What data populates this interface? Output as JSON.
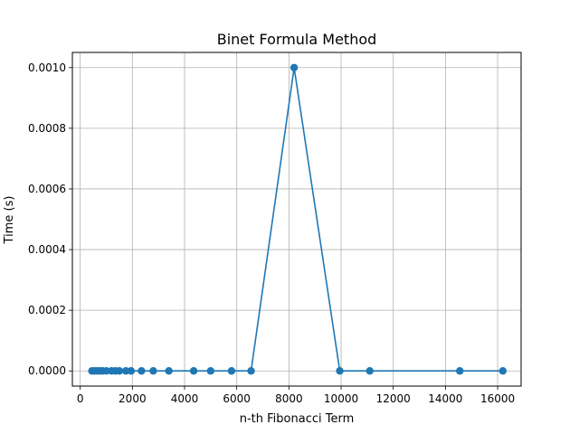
{
  "chart_data": {
    "type": "line",
    "title": "Binet Formula Method",
    "xlabel": "n-th Fibonacci Term",
    "ylabel": "Time (s)",
    "xlim": [
      -300,
      16900
    ],
    "ylim": [
      -5e-05,
      0.00105
    ],
    "grid": true,
    "marker": "circle",
    "color": "#1f77b4",
    "x_ticks": [
      {
        "value": 0,
        "label": "0"
      },
      {
        "value": 2000,
        "label": "2000"
      },
      {
        "value": 4000,
        "label": "4000"
      },
      {
        "value": 6000,
        "label": "6000"
      },
      {
        "value": 8000,
        "label": "8000"
      },
      {
        "value": 10000,
        "label": "10000"
      },
      {
        "value": 12000,
        "label": "12000"
      },
      {
        "value": 14000,
        "label": "14000"
      },
      {
        "value": 16000,
        "label": "16000"
      }
    ],
    "y_ticks": [
      {
        "value": 0,
        "label": "0.0000"
      },
      {
        "value": 0.0002,
        "label": "0.0002"
      },
      {
        "value": 0.0004,
        "label": "0.0004"
      },
      {
        "value": 0.0006,
        "label": "0.0006"
      },
      {
        "value": 0.0008,
        "label": "0.0008"
      },
      {
        "value": 0.001,
        "label": "0.0010"
      }
    ],
    "series": [
      {
        "x": [
          450,
          550,
          650,
          750,
          850,
          1000,
          1200,
          1350,
          1500,
          1750,
          1950,
          2350,
          2800,
          3400,
          4350,
          5000,
          5800,
          6550,
          8200,
          9950,
          11100,
          14550,
          16200
        ],
        "y": [
          0,
          0,
          0,
          0,
          0,
          0,
          0,
          0,
          0,
          0,
          0,
          0,
          0,
          0,
          0,
          0,
          0,
          0,
          0.001,
          0,
          0,
          0,
          0
        ]
      }
    ]
  }
}
